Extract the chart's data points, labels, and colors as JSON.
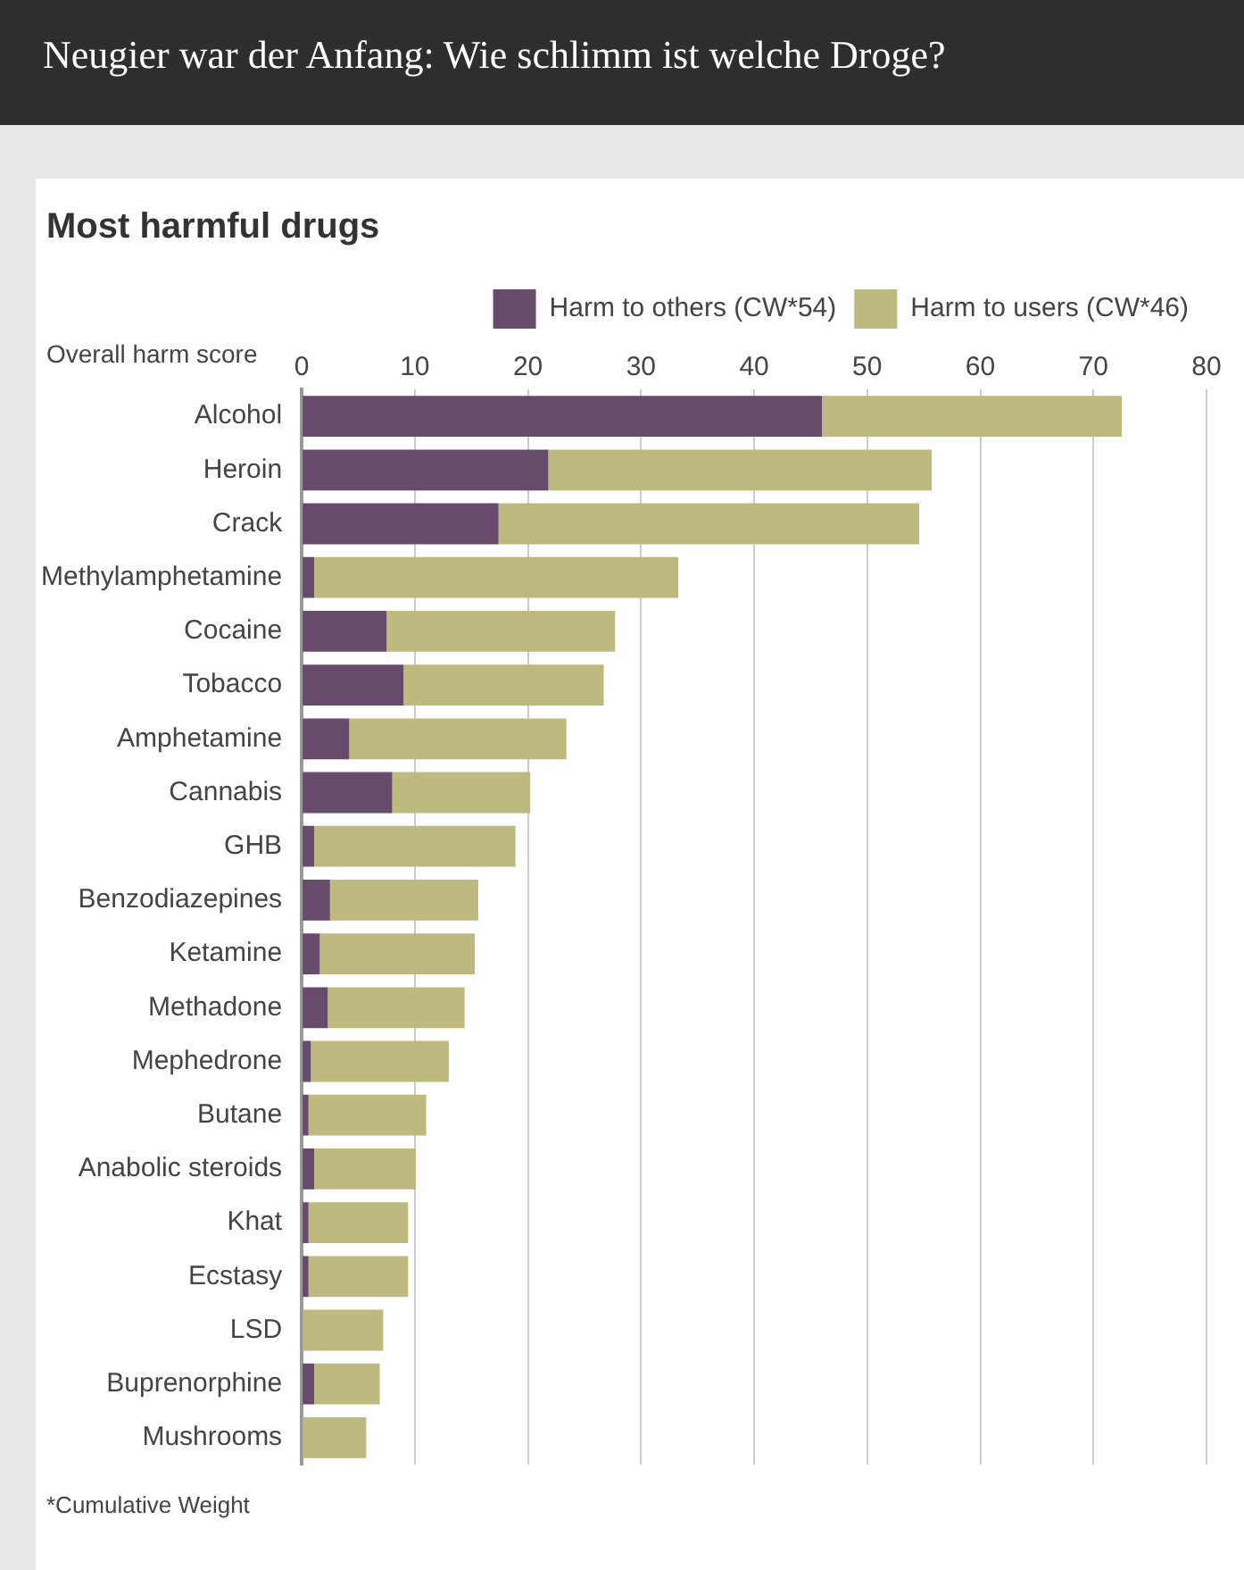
{
  "chart_data": {
    "type": "bar",
    "orientation": "horizontal",
    "stacked": true,
    "title": "Neugier war der Anfang: Wie schlimm ist welche Droge?",
    "subtitle": "Most harmful drugs",
    "xlabel": "Overall harm score",
    "categories": [
      "Alcohol",
      "Heroin",
      "Crack",
      "Methylamphetamine",
      "Cocaine",
      "Tobacco",
      "Amphetamine",
      "Cannabis",
      "GHB",
      "Benzodiazepines",
      "Ketamine",
      "Methadone",
      "Mephedrone",
      "Butane",
      "Anabolic steroids",
      "Khat",
      "Ecstasy",
      "LSD",
      "Buprenorphine",
      "Mushrooms"
    ],
    "series": [
      {
        "name": "Harm to others (CW*54)",
        "color": "#674a6c",
        "values": [
          46,
          21.8,
          17.4,
          1.1,
          7.5,
          9,
          4.2,
          8,
          1.1,
          2.5,
          1.6,
          2.3,
          0.8,
          0.6,
          1.1,
          0.6,
          0.6,
          0,
          1.1,
          0
        ]
      },
      {
        "name": "Harm to users (CW*46)",
        "color": "#bdb97f",
        "values": [
          26.5,
          33.9,
          37.2,
          32.2,
          20.2,
          17.7,
          19.2,
          12.2,
          17.8,
          13.1,
          13.7,
          12.1,
          12.2,
          10.4,
          9,
          8.8,
          8.8,
          7.2,
          5.8,
          5.7
        ]
      }
    ],
    "xlim": [
      0,
      80
    ],
    "xticks": [
      0,
      10,
      20,
      30,
      40,
      50,
      60,
      70,
      80
    ],
    "grid": "x",
    "legend": "top",
    "annotations": [
      "*Cumulative Weight"
    ]
  }
}
